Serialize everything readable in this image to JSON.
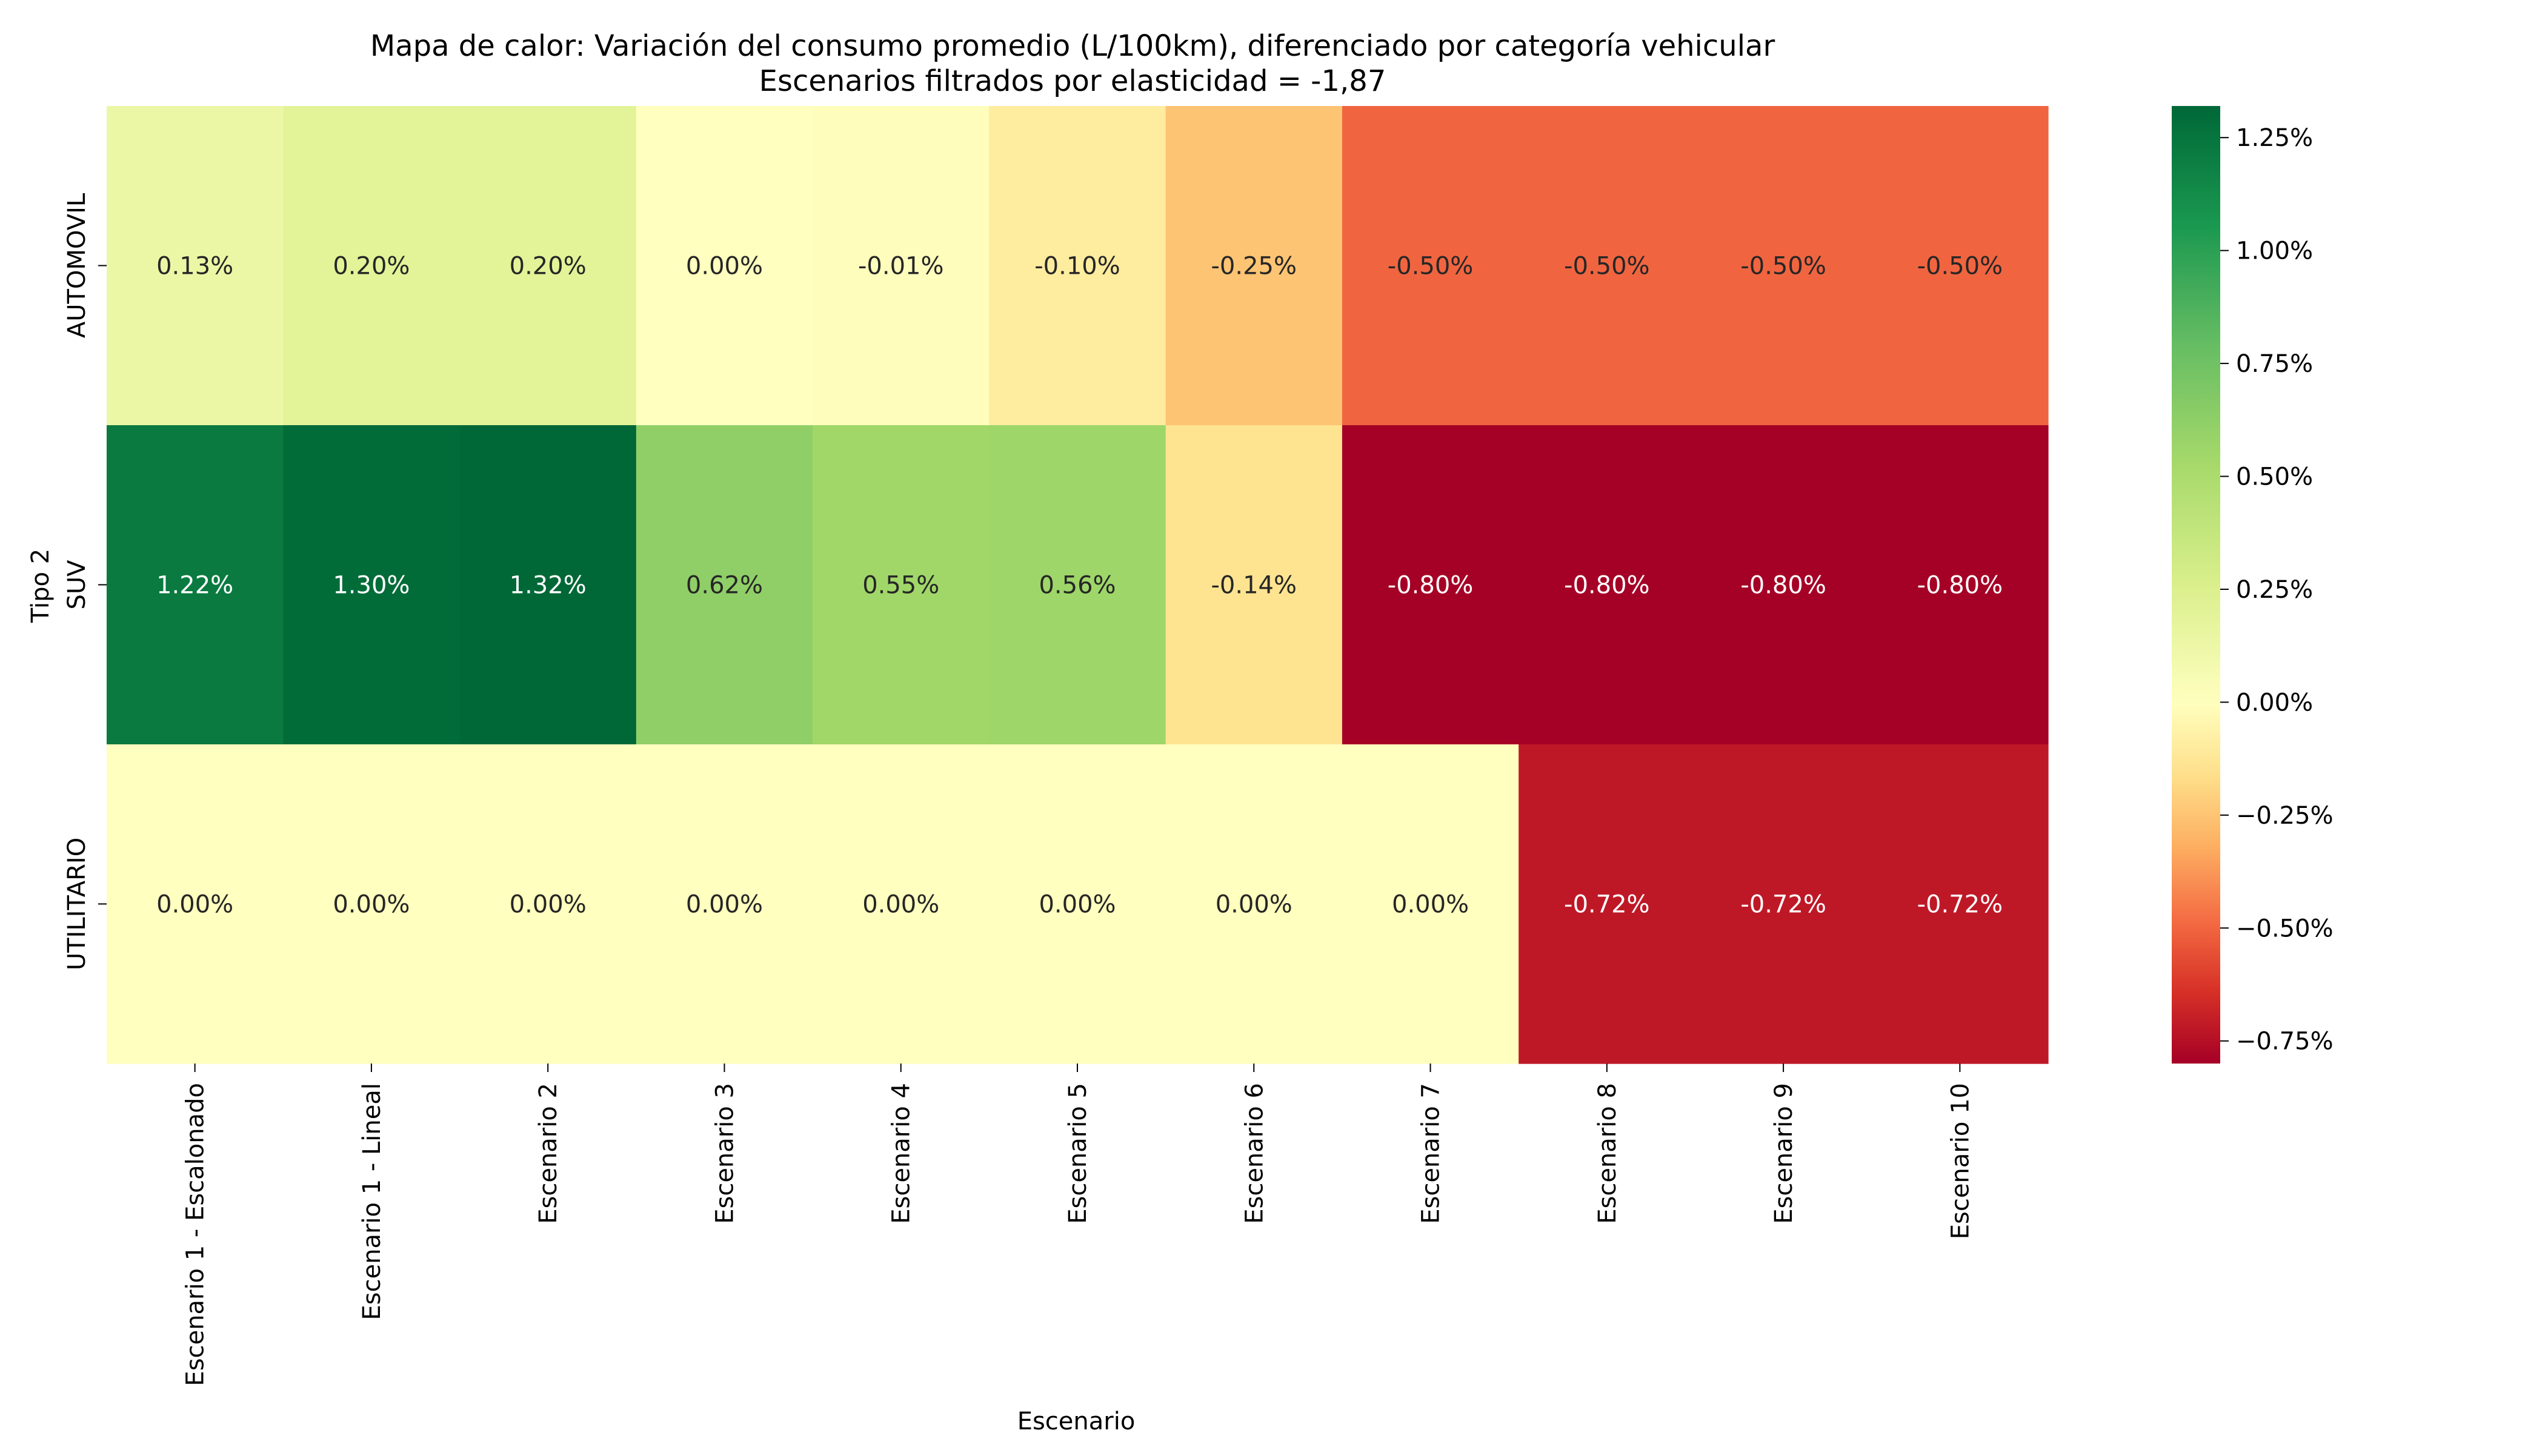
{
  "chart_data": {
    "type": "heatmap",
    "title": "Mapa de calor: Variación del consumo promedio (L/100km), diferenciado por categoría vehicular",
    "subtitle": "Escenarios filtrados por elasticidad = -1,87",
    "xlabel": "Escenario",
    "ylabel": "Tipo 2",
    "x_categories": [
      "Escenario 1 - Escalonado",
      "Escenario 1 - Lineal",
      "Escenario 2",
      "Escenario 3",
      "Escenario 4",
      "Escenario 5",
      "Escenario 6",
      "Escenario 7",
      "Escenario 8",
      "Escenario 9",
      "Escenario 10"
    ],
    "y_categories": [
      "AUTOMOVIL",
      "SUV",
      "UTILITARIO"
    ],
    "values": [
      [
        0.13,
        0.2,
        0.2,
        0.0,
        -0.01,
        -0.1,
        -0.25,
        -0.5,
        -0.5,
        -0.5,
        -0.5
      ],
      [
        1.22,
        1.3,
        1.32,
        0.62,
        0.55,
        0.56,
        -0.14,
        -0.8,
        -0.8,
        -0.8,
        -0.8
      ],
      [
        0.0,
        0.0,
        0.0,
        0.0,
        0.0,
        0.0,
        0.0,
        0.0,
        -0.72,
        -0.72,
        -0.72
      ]
    ],
    "cell_labels": [
      [
        "0.13%",
        "0.20%",
        "0.20%",
        "0.00%",
        "-0.01%",
        "-0.10%",
        "-0.25%",
        "-0.50%",
        "-0.50%",
        "-0.50%",
        "-0.50%"
      ],
      [
        "1.22%",
        "1.30%",
        "1.32%",
        "0.62%",
        "0.55%",
        "0.56%",
        "-0.14%",
        "-0.80%",
        "-0.80%",
        "-0.80%",
        "-0.80%"
      ],
      [
        "0.00%",
        "0.00%",
        "0.00%",
        "0.00%",
        "0.00%",
        "0.00%",
        "0.00%",
        "0.00%",
        "-0.72%",
        "-0.72%",
        "-0.72%"
      ]
    ],
    "unit": "%",
    "colorbar": {
      "colormap": "RdYlGn",
      "vmin": -0.8,
      "vmax": 1.32,
      "ticks": [
        1.25,
        1.0,
        0.75,
        0.5,
        0.25,
        0.0,
        -0.25,
        -0.5,
        -0.75
      ],
      "tick_labels": [
        "1.25%",
        "1.00%",
        "0.75%",
        "0.50%",
        "0.25%",
        "0.00%",
        "−0.25%",
        "−0.50%",
        "−0.75%"
      ]
    }
  }
}
